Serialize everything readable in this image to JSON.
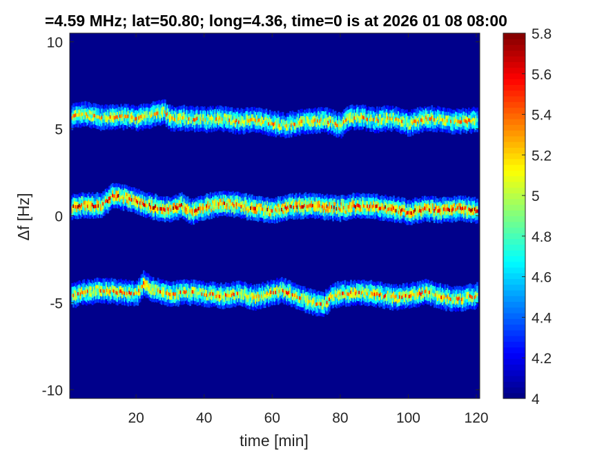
{
  "chart_data": {
    "type": "heatmap",
    "title": "=4.59 MHz;  lat=50.80; long=4.36, time=0 is at 2026 01 08 08:00",
    "xlabel": "time [min]",
    "ylabel": "Δf [Hz]",
    "xlim": [
      0.5,
      121
    ],
    "ylim": [
      -10.5,
      10.5
    ],
    "x_ticks": [
      20,
      40,
      60,
      80,
      100,
      120
    ],
    "x_tick_labels": [
      "20",
      "40",
      "60",
      "80",
      "100",
      "120"
    ],
    "y_ticks": [
      10,
      5,
      0,
      -5,
      -10
    ],
    "y_tick_labels": [
      "10",
      "5",
      "0",
      "-5",
      "-10"
    ],
    "colorbar": {
      "colormap": "jet",
      "clim": [
        4,
        5.8
      ],
      "ticks": [
        4,
        4.2,
        4.4,
        4.6,
        4.8,
        5,
        5.2,
        5.4,
        5.6,
        5.8
      ],
      "tick_labels": [
        "4",
        "4.2",
        "4.4",
        "4.6",
        "4.8",
        "5",
        "5.2",
        "5.4",
        "5.6",
        "5.8"
      ]
    },
    "background_value": 4.02,
    "series": [
      {
        "center_track": [
          [
            1,
            5.7
          ],
          [
            5,
            5.8
          ],
          [
            10,
            5.6
          ],
          [
            15,
            5.7
          ],
          [
            20,
            5.6
          ],
          [
            25,
            5.8
          ],
          [
            28,
            6.0
          ],
          [
            30,
            5.6
          ],
          [
            35,
            5.6
          ],
          [
            40,
            5.5
          ],
          [
            45,
            5.6
          ],
          [
            50,
            5.4
          ],
          [
            55,
            5.5
          ],
          [
            60,
            5.3
          ],
          [
            63,
            5.2
          ],
          [
            70,
            5.4
          ],
          [
            75,
            5.5
          ],
          [
            78,
            5.3
          ],
          [
            80,
            5.2
          ],
          [
            82,
            5.6
          ],
          [
            85,
            5.7
          ],
          [
            90,
            5.5
          ],
          [
            95,
            5.6
          ],
          [
            100,
            5.3
          ],
          [
            105,
            5.6
          ],
          [
            110,
            5.5
          ],
          [
            115,
            5.4
          ],
          [
            120,
            5.5
          ]
        ],
        "peak_value": 5.5
      },
      {
        "center_track": [
          [
            1,
            0.5
          ],
          [
            5,
            0.6
          ],
          [
            10,
            0.6
          ],
          [
            13,
            1.2
          ],
          [
            15,
            1.1
          ],
          [
            20,
            0.8
          ],
          [
            25,
            0.5
          ],
          [
            30,
            0.3
          ],
          [
            33,
            0.6
          ],
          [
            36,
            0.2
          ],
          [
            40,
            0.5
          ],
          [
            45,
            0.7
          ],
          [
            50,
            0.6
          ],
          [
            55,
            0.4
          ],
          [
            60,
            0.3
          ],
          [
            65,
            0.5
          ],
          [
            70,
            0.6
          ],
          [
            75,
            0.5
          ],
          [
            80,
            0.4
          ],
          [
            85,
            0.6
          ],
          [
            90,
            0.5
          ],
          [
            95,
            0.4
          ],
          [
            100,
            0.2
          ],
          [
            105,
            0.4
          ],
          [
            110,
            0.3
          ],
          [
            115,
            0.4
          ],
          [
            120,
            0.3
          ]
        ],
        "peak_value": 5.8
      },
      {
        "center_track": [
          [
            1,
            -4.6
          ],
          [
            5,
            -4.4
          ],
          [
            10,
            -4.3
          ],
          [
            15,
            -4.4
          ],
          [
            20,
            -4.5
          ],
          [
            22,
            -3.9
          ],
          [
            25,
            -4.3
          ],
          [
            30,
            -4.5
          ],
          [
            35,
            -4.4
          ],
          [
            40,
            -4.5
          ],
          [
            45,
            -4.6
          ],
          [
            50,
            -4.5
          ],
          [
            55,
            -4.7
          ],
          [
            60,
            -4.4
          ],
          [
            63,
            -4.3
          ],
          [
            70,
            -4.9
          ],
          [
            75,
            -5.1
          ],
          [
            78,
            -4.6
          ],
          [
            80,
            -4.5
          ],
          [
            85,
            -4.4
          ],
          [
            90,
            -4.5
          ],
          [
            95,
            -4.7
          ],
          [
            100,
            -4.6
          ],
          [
            105,
            -4.4
          ],
          [
            110,
            -4.7
          ],
          [
            115,
            -4.8
          ],
          [
            120,
            -4.6
          ]
        ],
        "peak_value": 5.6
      }
    ]
  }
}
